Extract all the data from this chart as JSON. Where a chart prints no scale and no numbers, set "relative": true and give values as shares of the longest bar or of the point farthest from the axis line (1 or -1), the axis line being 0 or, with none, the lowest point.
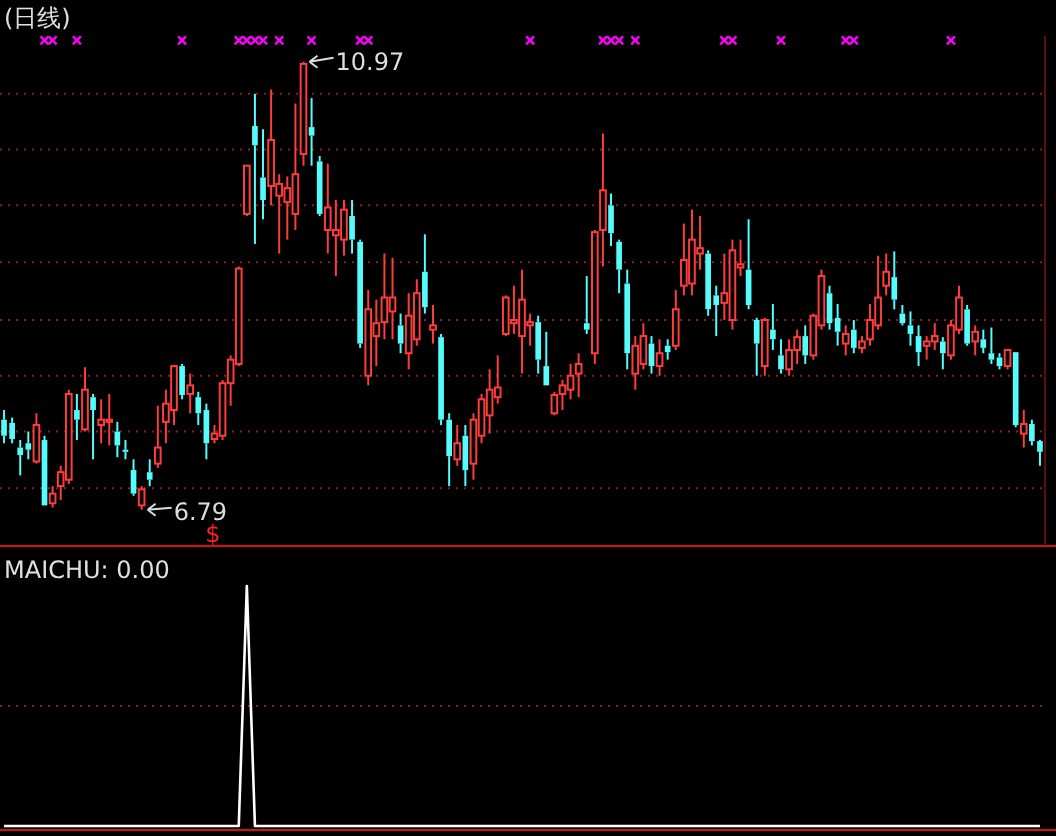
{
  "chart_data": [
    {
      "type": "candlestick",
      "title": "(日线)",
      "categories": [
        null,
        null,
        null,
        null,
        null,
        null,
        null,
        null,
        null,
        null,
        null,
        null,
        null,
        null,
        null,
        null,
        null,
        null,
        null,
        null,
        null,
        null,
        null,
        null,
        null,
        null,
        null,
        null,
        null,
        null,
        null,
        null,
        null,
        null,
        null,
        null,
        null,
        null,
        null,
        null,
        null,
        null,
        null,
        null,
        null,
        null,
        null,
        null,
        null,
        null,
        null,
        null,
        null,
        null,
        null,
        null,
        null,
        null,
        null,
        null,
        null,
        null,
        null,
        null,
        null,
        null,
        null,
        null,
        null,
        null,
        null,
        null,
        null,
        null,
        null,
        null,
        null,
        null,
        null,
        null,
        null,
        null,
        null,
        null,
        null,
        null,
        null,
        null,
        null,
        null,
        null,
        null,
        null,
        null,
        null,
        null,
        null,
        null,
        null,
        null,
        null,
        null,
        null,
        null,
        null,
        null,
        null,
        null,
        null,
        null,
        null,
        null,
        null,
        null,
        null,
        null,
        null,
        null,
        null,
        null,
        null,
        null,
        null,
        null,
        null,
        null,
        null,
        null,
        null
      ],
      "ohlc": [
        [
          7.63,
          7.72,
          7.41,
          7.48
        ],
        [
          7.6,
          7.65,
          7.41,
          7.45
        ],
        [
          7.37,
          7.44,
          7.11,
          7.3
        ],
        [
          7.41,
          7.52,
          7.26,
          7.35
        ],
        [
          7.24,
          7.69,
          7.22,
          7.58
        ],
        [
          7.44,
          7.48,
          6.83,
          6.83
        ],
        [
          6.85,
          7.01,
          6.81,
          6.94
        ],
        [
          7.01,
          7.2,
          6.88,
          7.14
        ],
        [
          7.07,
          7.91,
          7.03,
          7.87
        ],
        [
          7.72,
          7.87,
          7.44,
          7.63
        ],
        [
          7.54,
          8.12,
          7.52,
          7.91
        ],
        [
          7.84,
          7.87,
          7.26,
          7.72
        ],
        [
          7.58,
          7.82,
          7.41,
          7.63
        ],
        [
          7.61,
          7.87,
          7.39,
          7.63
        ],
        [
          7.52,
          7.61,
          7.28,
          7.39
        ],
        [
          7.35,
          7.44,
          7.26,
          7.33
        ],
        [
          7.16,
          7.26,
          6.92,
          6.94
        ],
        [
          6.83,
          7.01,
          6.79,
          6.98
        ],
        [
          7.14,
          7.26,
          7.01,
          7.07
        ],
        [
          7.22,
          7.76,
          7.18,
          7.37
        ],
        [
          7.61,
          7.91,
          7.41,
          7.78
        ],
        [
          7.72,
          8.13,
          7.58,
          8.13
        ],
        [
          8.13,
          8.15,
          7.82,
          7.86
        ],
        [
          7.87,
          8.06,
          7.69,
          7.95
        ],
        [
          7.84,
          7.89,
          7.58,
          7.69
        ],
        [
          7.72,
          7.78,
          7.26,
          7.41
        ],
        [
          7.45,
          7.58,
          7.41,
          7.5
        ],
        [
          7.48,
          8.0,
          7.44,
          7.97
        ],
        [
          7.97,
          8.23,
          7.76,
          8.19
        ],
        [
          8.15,
          9.06,
          8.13,
          9.04
        ],
        [
          9.55,
          10.0,
          9.53,
          10.0
        ],
        [
          10.37,
          10.67,
          9.27,
          10.19
        ],
        [
          9.89,
          10.34,
          9.5,
          9.68
        ],
        [
          9.81,
          10.71,
          9.63,
          10.24
        ],
        [
          9.72,
          9.92,
          9.18,
          9.83
        ],
        [
          9.66,
          9.9,
          9.31,
          9.79
        ],
        [
          9.55,
          10.58,
          9.4,
          9.92
        ],
        [
          10.11,
          10.97,
          10.0,
          10.95
        ],
        [
          10.36,
          10.63,
          10.0,
          10.28
        ],
        [
          10.04,
          10.09,
          9.53,
          9.55
        ],
        [
          9.4,
          10.02,
          9.18,
          9.61
        ],
        [
          9.35,
          9.68,
          8.97,
          9.4
        ],
        [
          9.31,
          9.68,
          9.16,
          9.59
        ],
        [
          9.53,
          9.68,
          9.18,
          9.31
        ],
        [
          9.29,
          9.31,
          8.3,
          8.34
        ],
        [
          8.04,
          8.84,
          7.95,
          8.66
        ],
        [
          8.41,
          8.75,
          8.13,
          8.53
        ],
        [
          8.54,
          9.18,
          8.38,
          8.77
        ],
        [
          8.64,
          9.14,
          8.38,
          8.77
        ],
        [
          8.51,
          8.62,
          8.25,
          8.34
        ],
        [
          8.25,
          8.81,
          8.1,
          8.6
        ],
        [
          8.38,
          8.94,
          8.32,
          8.81
        ],
        [
          9.01,
          9.36,
          8.62,
          8.68
        ],
        [
          8.47,
          8.7,
          8.34,
          8.51
        ],
        [
          8.4,
          8.43,
          7.58,
          7.63
        ],
        [
          7.63,
          7.69,
          7.01,
          7.29
        ],
        [
          7.26,
          7.58,
          7.2,
          7.41
        ],
        [
          7.48,
          7.58,
          7.01,
          7.16
        ],
        [
          7.22,
          7.69,
          7.07,
          7.63
        ],
        [
          7.48,
          7.87,
          7.41,
          7.82
        ],
        [
          7.67,
          8.1,
          7.5,
          7.91
        ],
        [
          7.84,
          8.23,
          7.78,
          7.93
        ],
        [
          8.43,
          8.79,
          8.41,
          8.77
        ],
        [
          8.53,
          8.88,
          8.43,
          8.56
        ],
        [
          8.41,
          9.03,
          8.06,
          8.75
        ],
        [
          8.51,
          8.62,
          8.32,
          8.54
        ],
        [
          8.54,
          8.6,
          8.06,
          8.19
        ],
        [
          8.13,
          8.45,
          7.95,
          7.95
        ],
        [
          7.69,
          7.89,
          7.67,
          7.86
        ],
        [
          7.87,
          8.0,
          7.72,
          7.95
        ],
        [
          7.91,
          8.15,
          7.82,
          8.04
        ],
        [
          8.06,
          8.25,
          7.84,
          8.15
        ],
        [
          8.53,
          8.97,
          8.43,
          8.47
        ],
        [
          8.25,
          9.4,
          8.15,
          9.38
        ],
        [
          9.4,
          10.3,
          9.06,
          9.77
        ],
        [
          9.63,
          9.74,
          9.25,
          9.37
        ],
        [
          9.29,
          9.31,
          8.81,
          9.03
        ],
        [
          8.9,
          9.03,
          8.1,
          8.25
        ],
        [
          8.06,
          8.41,
          7.91,
          8.32
        ],
        [
          8.15,
          8.53,
          8.1,
          8.41
        ],
        [
          8.34,
          8.41,
          8.06,
          8.13
        ],
        [
          8.13,
          8.38,
          8.04,
          8.25
        ],
        [
          8.32,
          8.38,
          8.19,
          8.26
        ],
        [
          8.32,
          8.84,
          8.28,
          8.66
        ],
        [
          8.88,
          9.46,
          8.79,
          9.12
        ],
        [
          8.9,
          9.59,
          8.79,
          9.31
        ],
        [
          9.18,
          9.53,
          9.03,
          9.23
        ],
        [
          9.18,
          9.21,
          8.6,
          8.66
        ],
        [
          8.79,
          8.88,
          8.41,
          8.7
        ],
        [
          8.72,
          9.18,
          8.56,
          8.81
        ],
        [
          8.56,
          9.31,
          8.47,
          9.21
        ],
        [
          9.05,
          9.31,
          8.97,
          9.08
        ],
        [
          9.03,
          9.5,
          8.66,
          8.7
        ],
        [
          8.56,
          8.58,
          8.04,
          8.34
        ],
        [
          8.13,
          8.58,
          8.04,
          8.56
        ],
        [
          8.47,
          8.71,
          8.28,
          8.38
        ],
        [
          8.23,
          8.38,
          8.06,
          8.1
        ],
        [
          8.1,
          8.38,
          8.04,
          8.28
        ],
        [
          8.28,
          8.47,
          8.15,
          8.4
        ],
        [
          8.41,
          8.51,
          8.15,
          8.23
        ],
        [
          8.23,
          8.62,
          8.19,
          8.6
        ],
        [
          8.51,
          9.03,
          8.47,
          8.97
        ],
        [
          8.81,
          8.88,
          8.47,
          8.53
        ],
        [
          8.58,
          8.71,
          8.32,
          8.45
        ],
        [
          8.34,
          8.51,
          8.23,
          8.43
        ],
        [
          8.47,
          8.56,
          8.25,
          8.3
        ],
        [
          8.3,
          8.41,
          8.25,
          8.36
        ],
        [
          8.38,
          8.71,
          8.32,
          8.56
        ],
        [
          8.51,
          9.16,
          8.47,
          8.77
        ],
        [
          8.88,
          9.18,
          8.79,
          9.01
        ],
        [
          8.96,
          9.2,
          8.66,
          8.75
        ],
        [
          8.62,
          8.7,
          8.51,
          8.53
        ],
        [
          8.51,
          8.64,
          8.32,
          8.43
        ],
        [
          8.41,
          8.51,
          8.13,
          8.26
        ],
        [
          8.32,
          8.41,
          8.19,
          8.36
        ],
        [
          8.36,
          8.53,
          8.28,
          8.41
        ],
        [
          8.36,
          8.4,
          8.1,
          8.25
        ],
        [
          8.23,
          8.56,
          8.19,
          8.51
        ],
        [
          8.47,
          8.88,
          8.43,
          8.77
        ],
        [
          8.66,
          8.7,
          8.32,
          8.34
        ],
        [
          8.36,
          8.51,
          8.23,
          8.45
        ],
        [
          8.38,
          8.47,
          8.25,
          8.3
        ],
        [
          8.25,
          8.49,
          8.15,
          8.19
        ],
        [
          8.21,
          8.25,
          8.1,
          8.13
        ],
        [
          8.13,
          8.28,
          8.1,
          8.28
        ],
        [
          8.26,
          8.26,
          7.56,
          7.58
        ],
        [
          7.5,
          7.72,
          7.37,
          7.59
        ],
        [
          7.59,
          7.63,
          7.39,
          7.43
        ],
        [
          7.43,
          7.44,
          7.2,
          7.33
        ]
      ],
      "series": [
        {
          "type": "scatter",
          "color": "#ff00ff",
          "values": [
            null,
            null,
            null,
            null,
            null,
            11.17,
            11.17,
            null,
            null,
            11.17,
            null,
            null,
            null,
            null,
            null,
            null,
            null,
            null,
            null,
            null,
            null,
            null,
            11.17,
            null,
            null,
            null,
            null,
            null,
            null,
            11.17,
            11.17,
            11.17,
            11.17,
            null,
            11.17,
            null,
            null,
            null,
            11.17,
            null,
            null,
            null,
            null,
            null,
            11.17,
            11.17,
            null,
            null,
            null,
            null,
            null,
            null,
            null,
            null,
            null,
            null,
            null,
            null,
            null,
            null,
            null,
            null,
            null,
            null,
            null,
            11.17,
            null,
            null,
            null,
            null,
            null,
            null,
            null,
            null,
            11.17,
            11.17,
            11.17,
            null,
            11.17,
            null,
            null,
            null,
            null,
            null,
            null,
            null,
            null,
            null,
            null,
            11.17,
            11.17,
            null,
            null,
            null,
            null,
            null,
            11.17,
            null,
            null,
            null,
            null,
            null,
            null,
            null,
            11.17,
            11.17,
            null,
            null,
            null,
            null,
            null,
            null,
            null,
            null,
            null,
            null,
            null,
            11.17,
            null,
            null,
            null,
            null,
            null,
            null,
            null,
            null,
            null,
            null,
            null
          ]
        }
      ],
      "marker": "cross",
      "ylim": [
        6.47,
        11.21
      ],
      "yticks": [
        {
          "value": 6.99,
          "label": null
        },
        {
          "value": 7.52,
          "label": null
        },
        {
          "value": 8.04,
          "label": null
        },
        {
          "value": 8.56,
          "label": null
        },
        {
          "value": 9.1,
          "label": null
        },
        {
          "value": 9.63,
          "label": null
        },
        {
          "value": 10.15,
          "label": null
        },
        {
          "value": 10.67,
          "label": null
        }
      ],
      "grid": "y",
      "annotations": [
        "10.97",
        "6.79",
        "$"
      ]
    },
    {
      "type": "line",
      "title": "MAICHU: 0.00",
      "relative": true,
      "categories": [
        null,
        null,
        null,
        null,
        null,
        null,
        null,
        null,
        null,
        null,
        null,
        null,
        null,
        null,
        null,
        null,
        null,
        null,
        null,
        null,
        null,
        null,
        null,
        null,
        null,
        null,
        null,
        null,
        null,
        null,
        null,
        null,
        null,
        null,
        null,
        null,
        null,
        null,
        null,
        null,
        null,
        null,
        null,
        null,
        null,
        null,
        null,
        null,
        null,
        null,
        null,
        null,
        null,
        null,
        null,
        null,
        null,
        null,
        null,
        null,
        null,
        null,
        null,
        null,
        null,
        null,
        null,
        null,
        null,
        null,
        null,
        null,
        null,
        null,
        null,
        null,
        null,
        null,
        null,
        null,
        null,
        null,
        null,
        null,
        null,
        null,
        null,
        null,
        null,
        null,
        null,
        null,
        null,
        null,
        null,
        null,
        null,
        null,
        null,
        null,
        null,
        null,
        null,
        null,
        null,
        null,
        null,
        null,
        null,
        null,
        null,
        null,
        null,
        null,
        null,
        null,
        null,
        null,
        null,
        null,
        null,
        null,
        null,
        null,
        null,
        null,
        null,
        null,
        null
      ],
      "series": [
        {
          "color": "#ffffff",
          "values": [
            0,
            0,
            0,
            0,
            0,
            0,
            0,
            0,
            0,
            0,
            0,
            0,
            0,
            0,
            0,
            0,
            0,
            0,
            0,
            0,
            0,
            0,
            0,
            0,
            0,
            0,
            0,
            0,
            0,
            0,
            1,
            0,
            0,
            0,
            0,
            0,
            0,
            0,
            0,
            0,
            0,
            0,
            0,
            0,
            0,
            0,
            0,
            0,
            0,
            0,
            0,
            0,
            0,
            0,
            0,
            0,
            0,
            0,
            0,
            0,
            0,
            0,
            0,
            0,
            0,
            0,
            0,
            0,
            0,
            0,
            0,
            0,
            0,
            0,
            0,
            0,
            0,
            0,
            0,
            0,
            0,
            0,
            0,
            0,
            0,
            0,
            0,
            0,
            0,
            0,
            0,
            0,
            0,
            0,
            0,
            0,
            0,
            0,
            0,
            0,
            0,
            0,
            0,
            0,
            0,
            0,
            0,
            0,
            0,
            0,
            0,
            0,
            0,
            0,
            0,
            0,
            0,
            0,
            0,
            0,
            0,
            0,
            0,
            0,
            0,
            0,
            0,
            0,
            0
          ]
        }
      ],
      "ref_lines": [
        {
          "axis": "y",
          "value": 0.5,
          "color": "#8b2020",
          "line_style": "dotted"
        }
      ]
    }
  ]
}
